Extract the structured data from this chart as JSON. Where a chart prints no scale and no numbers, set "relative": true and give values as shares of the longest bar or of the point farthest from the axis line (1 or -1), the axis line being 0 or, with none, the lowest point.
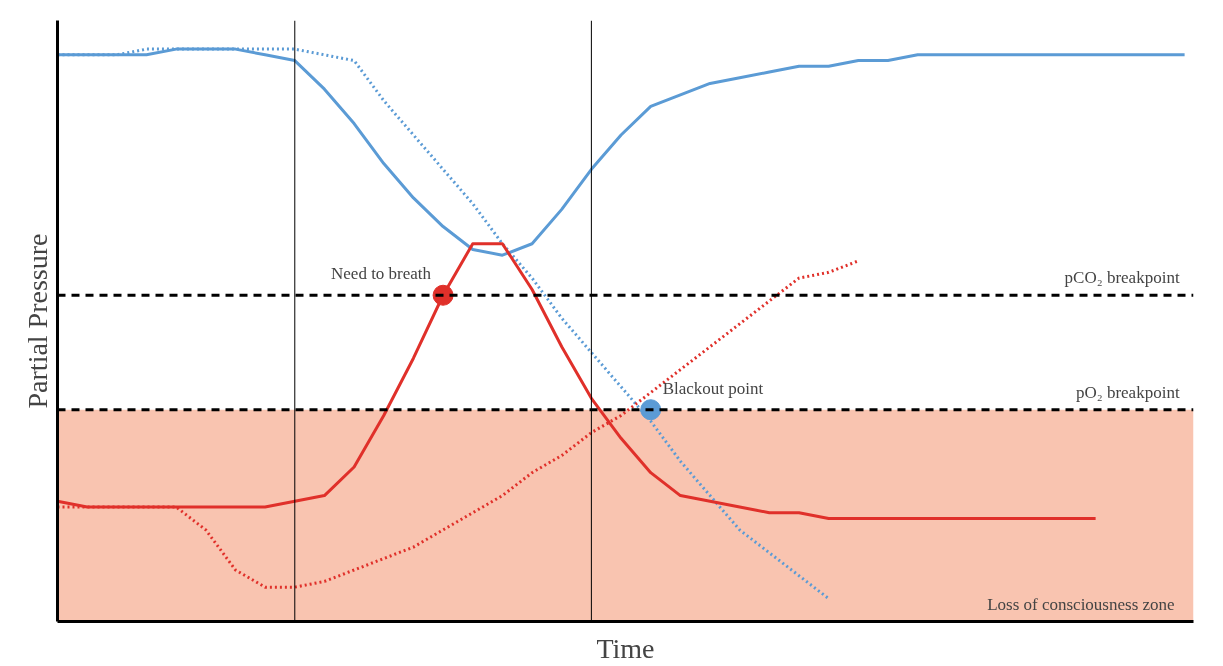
{
  "chart_data": {
    "type": "line",
    "relative": true,
    "xlabel": "Time",
    "ylabel": "Partial Pressure",
    "grid": false,
    "categories": [
      null,
      null,
      null,
      null,
      null,
      null,
      null,
      null,
      null,
      null,
      null,
      null,
      null,
      null,
      null,
      null,
      null,
      null,
      null,
      null,
      null,
      null,
      null,
      null,
      null,
      null,
      null,
      null,
      null,
      null,
      null,
      null,
      null,
      null,
      null,
      null,
      null,
      null,
      null
    ],
    "series": [
      {
        "color": "#5b9bd5",
        "line_style": "solid",
        "values": [
          0.99,
          0.99,
          0.99,
          0.99,
          1.0,
          1.0,
          1.0,
          0.99,
          0.98,
          0.93,
          0.87,
          0.8,
          0.74,
          0.69,
          0.65,
          0.64,
          0.66,
          0.72,
          0.79,
          0.85,
          0.9,
          0.92,
          0.94,
          0.95,
          0.96,
          0.97,
          0.97,
          0.98,
          0.98,
          0.99,
          0.99,
          0.99,
          0.99,
          0.99,
          0.99,
          0.99,
          0.99,
          0.99,
          0.99
        ]
      },
      {
        "color": "#5b9bd5",
        "line_style": "dotted",
        "values": [
          0.99,
          0.99,
          0.99,
          1.0,
          1.0,
          1.0,
          1.0,
          1.0,
          1.0,
          0.99,
          0.98,
          0.91,
          0.85,
          0.79,
          0.73,
          0.66,
          0.6,
          0.53,
          0.47,
          0.41,
          0.35,
          0.28,
          0.22,
          0.16,
          0.12,
          0.08,
          0.04,
          null,
          null,
          null,
          null,
          null,
          null,
          null,
          null,
          null,
          null,
          null,
          null
        ]
      },
      {
        "color": "#e0302a",
        "line_style": "solid",
        "values": [
          0.21,
          0.2,
          0.2,
          0.2,
          0.2,
          0.2,
          0.2,
          0.2,
          0.21,
          0.22,
          0.27,
          0.36,
          0.46,
          0.57,
          0.66,
          0.66,
          0.58,
          0.48,
          0.39,
          0.32,
          0.26,
          0.22,
          0.21,
          0.2,
          0.19,
          0.19,
          0.18,
          0.18,
          0.18,
          0.18,
          0.18,
          0.18,
          0.18,
          0.18,
          0.18,
          0.18,
          null,
          null,
          null
        ]
      },
      {
        "color": "#e0302a",
        "line_style": "dotted",
        "values": [
          0.2,
          0.2,
          0.2,
          0.2,
          0.2,
          0.16,
          0.09,
          0.06,
          0.06,
          0.07,
          0.09,
          0.11,
          0.13,
          0.16,
          0.19,
          0.22,
          0.26,
          0.29,
          0.33,
          0.36,
          0.4,
          0.44,
          0.48,
          0.52,
          0.56,
          0.6,
          0.61,
          0.63,
          null,
          null,
          null,
          null,
          null,
          null,
          null,
          null,
          null,
          null,
          null
        ]
      },
      {
        "marker": "circle",
        "color": "#e0302a",
        "values": [
          null,
          null,
          null,
          null,
          null,
          null,
          null,
          null,
          null,
          null,
          null,
          null,
          null,
          0.57,
          null,
          null,
          null,
          null,
          null,
          null,
          null,
          null,
          null,
          null,
          null,
          null,
          null,
          null,
          null,
          null,
          null,
          null,
          null,
          null,
          null,
          null,
          null,
          null,
          null
        ]
      },
      {
        "marker": "circle",
        "color": "#5b9bd5",
        "values": [
          null,
          null,
          null,
          null,
          null,
          null,
          null,
          null,
          null,
          null,
          null,
          null,
          null,
          null,
          null,
          null,
          null,
          null,
          null,
          null,
          0.37,
          null,
          null,
          null,
          null,
          null,
          null,
          null,
          null,
          null,
          null,
          null,
          null,
          null,
          null,
          null,
          null,
          null,
          null
        ]
      }
    ],
    "ref_lines": [
      {
        "axis": "y",
        "value": 0.57,
        "label": "pCO₂ breakpoint",
        "color": "#000000",
        "line_style": "dashed"
      },
      {
        "axis": "y",
        "value": 0.37,
        "label": "pO₂ breakpoint",
        "color": "#000000",
        "line_style": "dashed"
      }
    ],
    "bands": [
      {
        "axis": "y",
        "from": 0,
        "to": 0.37,
        "label": "Loss of consciousness zone",
        "color": "#f9c4b0"
      }
    ],
    "annotations": [
      {
        "text": "Need to breath",
        "y": 0.57
      },
      {
        "text": "Blackout point",
        "y": 0.37
      }
    ]
  }
}
